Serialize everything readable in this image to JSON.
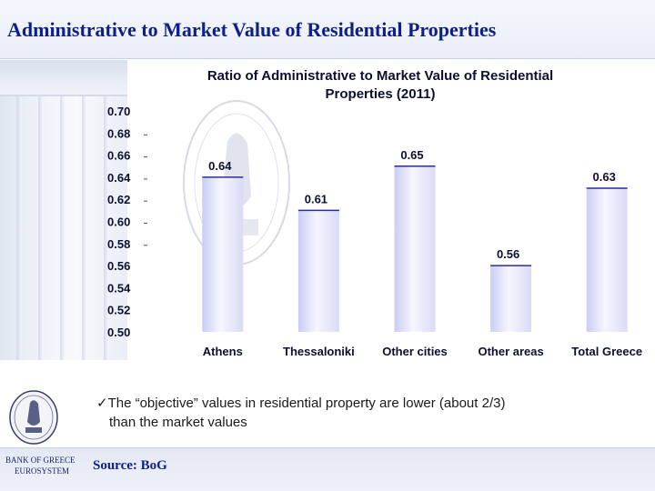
{
  "slide": {
    "title": "Administrative to Market Value of Residential Properties"
  },
  "colors": {
    "title": "#0f1f8a",
    "bar_fill_dark": "#c9cdf2",
    "bar_fill_light": "#f6f6ff",
    "bar_top": "#2b2d9a",
    "text_dark": "#0b1030"
  },
  "chart_data": {
    "type": "bar",
    "title_line1": "Ratio of Administrative to Market Value of Residential",
    "title_line2": "Properties (2011)",
    "categories": [
      "Athens",
      "Thessaloniki",
      "Other cities",
      "Other areas",
      "Total Greece"
    ],
    "values": [
      0.64,
      0.61,
      0.65,
      0.56,
      0.63
    ],
    "value_labels": [
      "0.64",
      "0.61",
      "0.65",
      "0.56",
      "0.63"
    ],
    "ylim": [
      0.5,
      0.7
    ],
    "yticks": [
      "0.70",
      "0.68",
      "0.66",
      "0.64",
      "0.62",
      "0.60",
      "0.58",
      "0.56",
      "0.54",
      "0.52",
      "0.50"
    ],
    "xlabel": "",
    "ylabel": "",
    "grid": false,
    "legend": "none"
  },
  "note": {
    "check": "✓",
    "line1": "The “objective” values in residential property are lower (about 2/3)",
    "line2": "than the market values"
  },
  "footer": {
    "bank_name": "BANK OF GREECE",
    "bank_sub": "EUROSYSTEM",
    "source": "Source: BoG"
  }
}
